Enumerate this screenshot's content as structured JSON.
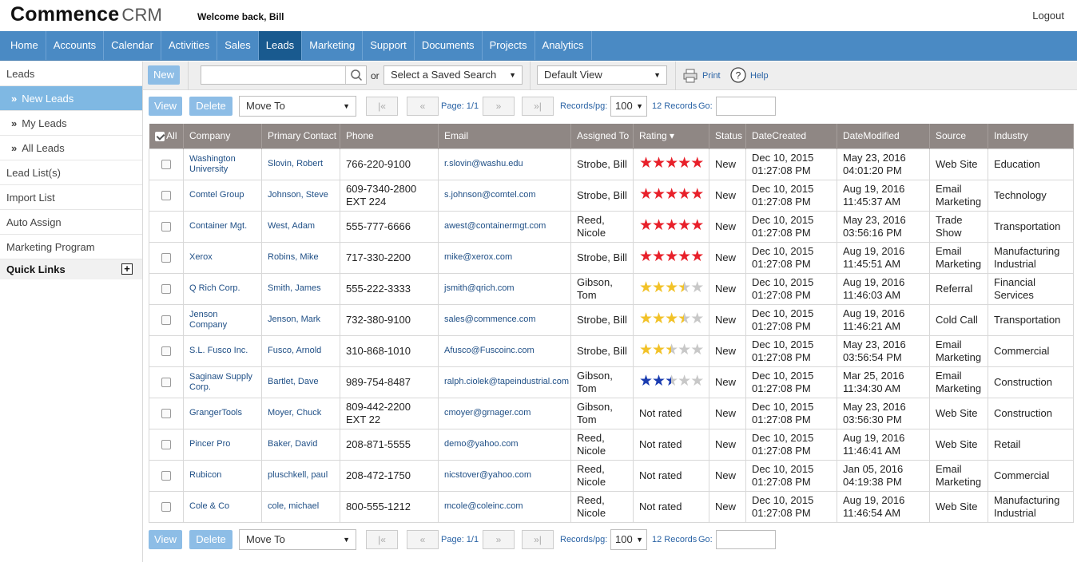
{
  "header": {
    "logo_main": "Commence",
    "logo_sub": "CRM",
    "welcome": "Welcome back, Bill",
    "logout": "Logout"
  },
  "nav": {
    "items": [
      "Home",
      "Accounts",
      "Calendar",
      "Activities",
      "Sales",
      "Leads",
      "Marketing",
      "Support",
      "Documents",
      "Projects",
      "Analytics"
    ],
    "active": "Leads"
  },
  "sidebar": {
    "items": [
      "Leads",
      "New Leads",
      "My Leads",
      "All Leads",
      "Lead List(s)",
      "Import List",
      "Auto Assign",
      "Marketing Program"
    ],
    "active": "New Leads",
    "quick_links": "Quick Links"
  },
  "toolbar": {
    "new_label": "New",
    "search_value": "",
    "or_label": "or",
    "saved_search": "Select a Saved Search",
    "view_select": "Default View",
    "print_label": "Print",
    "help_label": "Help"
  },
  "pager": {
    "view_label": "View",
    "delete_label": "Delete",
    "move_to": "Move To",
    "first": "|«",
    "prev": "«",
    "page_label": "Page: 1/1",
    "next": "»",
    "last": "»|",
    "records_per_page_label": "Records/pg:",
    "records_per_page": "100",
    "records_count": "12 Records",
    "go_label": "Go:",
    "go_value": ""
  },
  "table": {
    "columns": [
      "All",
      "Company",
      "Primary Contact",
      "Phone",
      "Email",
      "Assigned To",
      "Rating",
      "Status",
      "DateCreated",
      "DateModified",
      "Source",
      "Industry"
    ],
    "sort_indicator": "▾",
    "not_rated_label": "Not rated",
    "rows": [
      {
        "company": "Washington University",
        "contact": "Slovin, Robert",
        "phone": "766-220-9100",
        "email": "r.slovin@washu.edu",
        "assigned": "Strobe, Bill",
        "rating": 5,
        "star_color": "#e8202a",
        "status": "New",
        "created": "Dec 10, 2015 01:27:08 PM",
        "modified": "May 23, 2016 04:01:20 PM",
        "source": "Web Site",
        "industry": "Education"
      },
      {
        "company": "Comtel Group",
        "contact": "Johnson, Steve",
        "phone": "609-7340-2800 EXT 224",
        "email": "s.johnson@comtel.com",
        "assigned": "Strobe, Bill",
        "rating": 5,
        "star_color": "#e8202a",
        "status": "New",
        "created": "Dec 10, 2015 01:27:08 PM",
        "modified": "Aug 19, 2016 11:45:37 AM",
        "source": "Email Marketing",
        "industry": "Technology"
      },
      {
        "company": "Container Mgt.",
        "contact": "West, Adam",
        "phone": "555-777-6666",
        "email": "awest@containermgt.com",
        "assigned": "Reed, Nicole",
        "rating": 5,
        "star_color": "#e8202a",
        "status": "New",
        "created": "Dec 10, 2015 01:27:08 PM",
        "modified": "May 23, 2016 03:56:16 PM",
        "source": "Trade Show",
        "industry": "Transportation"
      },
      {
        "company": "Xerox",
        "contact": "Robins, Mike",
        "phone": "717-330-2200",
        "email": "mike@xerox.com",
        "assigned": "Strobe, Bill",
        "rating": 5,
        "star_color": "#e8202a",
        "status": "New",
        "created": "Dec 10, 2015 01:27:08 PM",
        "modified": "Aug 19, 2016 11:45:51 AM",
        "source": "Email Marketing",
        "industry": "Manufacturing Industrial"
      },
      {
        "company": "Q Rich Corp.",
        "contact": "Smith, James",
        "phone": "555-222-3333",
        "email": "jsmith@qrich.com",
        "assigned": "Gibson, Tom",
        "rating": 3.5,
        "star_color": "#f2c228",
        "status": "New",
        "created": "Dec 10, 2015 01:27:08 PM",
        "modified": "Aug 19, 2016 11:46:03 AM",
        "source": "Referral",
        "industry": "Financial Services"
      },
      {
        "company": "Jenson Company",
        "contact": "Jenson, Mark",
        "phone": "732-380-9100",
        "email": "sales@commence.com",
        "assigned": "Strobe, Bill",
        "rating": 3.5,
        "star_color": "#f2c228",
        "status": "New",
        "created": "Dec 10, 2015 01:27:08 PM",
        "modified": "Aug 19, 2016 11:46:21 AM",
        "source": "Cold Call",
        "industry": "Transportation"
      },
      {
        "company": "S.L. Fusco Inc.",
        "contact": "Fusco, Arnold",
        "phone": "310-868-1010",
        "email": "Afusco@Fuscoinc.com",
        "assigned": "Strobe, Bill",
        "rating": 2.5,
        "star_color": "#f2c228",
        "status": "New",
        "created": "Dec 10, 2015 01:27:08 PM",
        "modified": "May 23, 2016 03:56:54 PM",
        "source": "Email Marketing",
        "industry": "Commercial"
      },
      {
        "company": "Saginaw Supply Corp.",
        "contact": "Bartlet, Dave",
        "phone": "989-754-8487",
        "email": "ralph.ciolek@tapeindustrial.com",
        "assigned": "Gibson, Tom",
        "rating": 2.5,
        "star_color": "#1a3cb0",
        "status": "New",
        "created": "Dec 10, 2015 01:27:08 PM",
        "modified": "Mar 25, 2016 11:34:30 AM",
        "source": "Email Marketing",
        "industry": "Construction"
      },
      {
        "company": "GrangerTools",
        "contact": "Moyer, Chuck",
        "phone": "809-442-2200 EXT 22",
        "email": "cmoyer@grnager.com",
        "assigned": "Gibson, Tom",
        "rating": 0,
        "star_color": "",
        "status": "New",
        "created": "Dec 10, 2015 01:27:08 PM",
        "modified": "May 23, 2016 03:56:30 PM",
        "source": "Web Site",
        "industry": "Construction"
      },
      {
        "company": "Pincer Pro",
        "contact": "Baker, David",
        "phone": "208-871-5555",
        "email": "demo@yahoo.com",
        "assigned": "Reed, Nicole",
        "rating": 0,
        "star_color": "",
        "status": "New",
        "created": "Dec 10, 2015 01:27:08 PM",
        "modified": "Aug 19, 2016 11:46:41 AM",
        "source": "Web Site",
        "industry": "Retail"
      },
      {
        "company": "Rubicon",
        "contact": "pluschkell, paul",
        "phone": "208-472-1750",
        "email": "nicstover@yahoo.com",
        "assigned": "Reed, Nicole",
        "rating": 0,
        "star_color": "",
        "status": "New",
        "created": "Dec 10, 2015 01:27:08 PM",
        "modified": "Jan 05, 2016 04:19:38 PM",
        "source": "Email Marketing",
        "industry": "Commercial"
      },
      {
        "company": "Cole & Co",
        "contact": "cole, michael",
        "phone": "800-555-1212",
        "email": "mcole@coleinc.com",
        "assigned": "Reed, Nicole",
        "rating": 0,
        "star_color": "",
        "status": "New",
        "created": "Dec 10, 2015 01:27:08 PM",
        "modified": "Aug 19, 2016 11:46:54 AM",
        "source": "Web Site",
        "industry": "Manufacturing Industrial"
      }
    ]
  }
}
